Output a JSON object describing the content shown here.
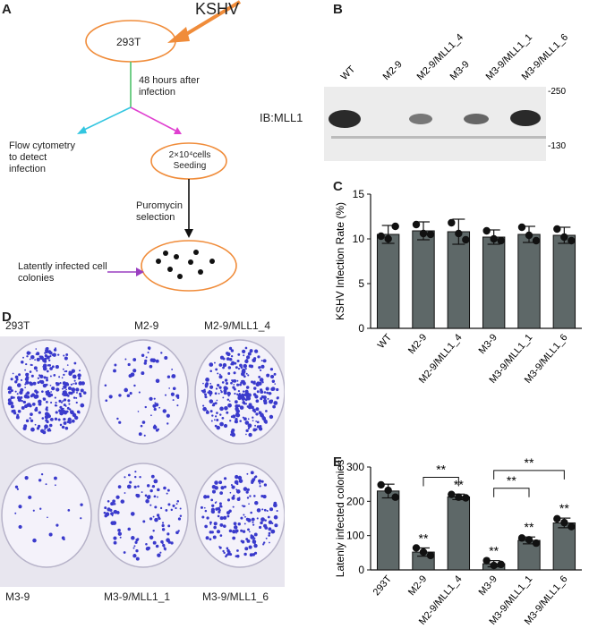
{
  "panels": {
    "A": "A",
    "B": "B",
    "C": "C",
    "D": "D",
    "E": "E"
  },
  "flow": {
    "virus": "KSHV",
    "cell": "293T",
    "timepoint": "48 hours after infection",
    "flow_text": "Flow cytometry to detect infection",
    "seeding_text": "2×10⁴cells Seeding",
    "selection": "Puromycin selection",
    "colonies_text": "Latently infected cell colonies"
  },
  "blot": {
    "lanes": [
      "WT",
      "M2-9",
      "M2-9/MLL1_4",
      "M3-9",
      "M3-9/MLL1_1",
      "M3-9/MLL1_6"
    ],
    "ib_label": "IB:MLL1",
    "marker_top": "-250",
    "marker_bottom": "-130"
  },
  "plates": {
    "labels": [
      "293T",
      "M2-9",
      "M2-9/MLL1_4",
      "M3-9",
      "M3-9/MLL1_1",
      "M3-9/MLL1_6"
    ],
    "plate_color": "#3a3acc"
  },
  "colors": {
    "bar": "#5e6868",
    "orange": "#f08c3a",
    "cyan": "#33c6e0",
    "magenta": "#e040d0",
    "purple": "#9a3fc0"
  },
  "chart_data": [
    {
      "type": "bar",
      "ylabel": "KSHV Infection Rate (%)",
      "ylim": [
        0,
        15
      ],
      "yticks": [
        0,
        5,
        10,
        15
      ],
      "categories": [
        "WT",
        "M2-9",
        "M2-9/MLL1_4",
        "M3-9",
        "M3-9/MLL1_1",
        "M3-9/MLL1_6"
      ],
      "values": [
        10.5,
        10.9,
        10.8,
        10.2,
        10.5,
        10.4
      ],
      "errors": [
        1.0,
        1.0,
        1.4,
        0.8,
        0.9,
        0.9
      ],
      "points": [
        [
          10.3,
          10.0,
          11.4
        ],
        [
          11.6,
          10.6,
          10.5
        ],
        [
          11.8,
          10.6,
          9.9
        ],
        [
          10.9,
          10.0,
          9.8
        ],
        [
          11.3,
          10.4,
          9.8
        ],
        [
          11.1,
          10.2,
          9.8
        ]
      ]
    },
    {
      "type": "bar",
      "ylabel": "Latenly infected colonies",
      "ylim": [
        0,
        300
      ],
      "yticks": [
        0,
        100,
        200,
        300
      ],
      "categories": [
        "293T",
        "M2-9",
        "M2-9/MLL1_4",
        "M3-9",
        "M3-9/MLL1_1",
        "M3-9/MLL1_6"
      ],
      "values": [
        230,
        52,
        213,
        18,
        86,
        137
      ],
      "errors": [
        20,
        12,
        8,
        9,
        10,
        14
      ],
      "points": [
        [
          248,
          232,
          212
        ],
        [
          64,
          52,
          42
        ],
        [
          220,
          212,
          210
        ],
        [
          27,
          13,
          16
        ],
        [
          93,
          88,
          78
        ],
        [
          149,
          138,
          126
        ]
      ],
      "significance": [
        "**",
        "**",
        "**",
        "**",
        "**"
      ],
      "brackets": [
        {
          "from": "M2-9",
          "to": "M2-9/MLL1_4",
          "label": "**"
        },
        {
          "from": "M3-9",
          "to": "M3-9/MLL1_1",
          "label": "**"
        },
        {
          "from": "M3-9",
          "to": "M3-9/MLL1_6",
          "label": "**"
        }
      ]
    }
  ]
}
